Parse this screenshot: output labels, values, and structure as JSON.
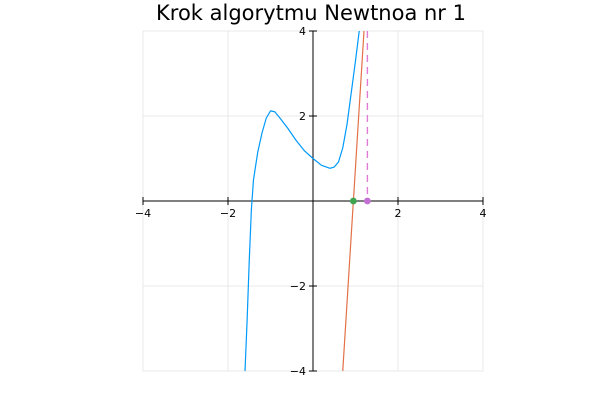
{
  "chart_data": {
    "type": "line",
    "title": "Krok algorytmu Newtnoa nr 1",
    "xlabel": "",
    "ylabel": "",
    "xlim": [
      -4,
      4
    ],
    "ylim": [
      -4,
      4
    ],
    "grid": true,
    "legend": "none",
    "x_ticks": [
      -4,
      -2,
      0,
      2,
      4
    ],
    "y_ticks": [
      -4,
      -2,
      0,
      2,
      4
    ],
    "x_tick_labels": [
      "−4",
      "−2",
      "",
      "2",
      "4"
    ],
    "y_tick_labels": [
      "−4",
      "−2",
      "",
      "2",
      "4"
    ],
    "series": [
      {
        "name": "f(x)",
        "kind": "line",
        "color": "#009AFA",
        "points": [
          [
            -1.6,
            -4.0
          ],
          [
            -1.55,
            -2.8
          ],
          [
            -1.5,
            -1.4
          ],
          [
            -1.45,
            -0.2
          ],
          [
            -1.4,
            0.5
          ],
          [
            -1.3,
            1.15
          ],
          [
            -1.2,
            1.6
          ],
          [
            -1.1,
            1.95
          ],
          [
            -1.0,
            2.12
          ],
          [
            -0.9,
            2.1
          ],
          [
            -0.8,
            1.98
          ],
          [
            -0.6,
            1.72
          ],
          [
            -0.4,
            1.43
          ],
          [
            -0.2,
            1.18
          ],
          [
            0.0,
            1.0
          ],
          [
            0.2,
            0.84
          ],
          [
            0.4,
            0.77
          ],
          [
            0.5,
            0.8
          ],
          [
            0.6,
            0.92
          ],
          [
            0.7,
            1.25
          ],
          [
            0.8,
            1.8
          ],
          [
            0.9,
            2.55
          ],
          [
            1.0,
            3.3
          ],
          [
            1.05,
            3.7
          ],
          [
            1.1,
            4.1
          ]
        ]
      },
      {
        "name": "tangent",
        "kind": "line",
        "color": "#E26F46",
        "points": [
          [
            0.7,
            -4.0
          ],
          [
            1.2,
            4.0
          ]
        ]
      },
      {
        "name": "next-x",
        "kind": "dashed-vline",
        "color": "#E07CD6",
        "x": 1.28
      },
      {
        "name": "current-point",
        "kind": "point",
        "color": "#3EA44E",
        "x": 0.95,
        "y": 0
      },
      {
        "name": "next-point",
        "kind": "point",
        "color": "#C271D2",
        "x": 1.28,
        "y": 0
      }
    ]
  }
}
